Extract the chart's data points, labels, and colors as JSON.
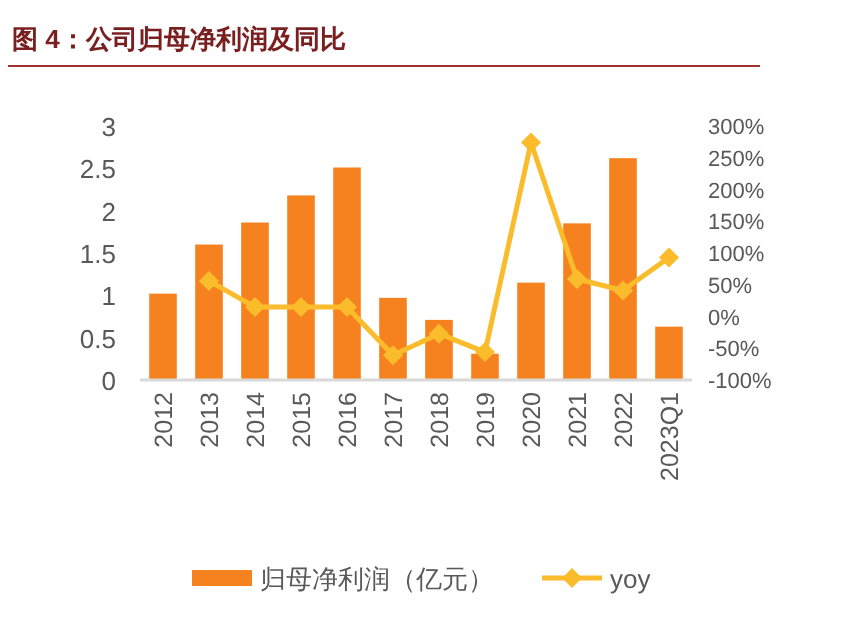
{
  "chart_data": {
    "type": "bar",
    "title": "图 4：公司归母净利润及同比",
    "categories": [
      "2012",
      "2013",
      "2014",
      "2015",
      "2016",
      "2017",
      "2018",
      "2019",
      "2020",
      "2021",
      "2022",
      "2023Q1"
    ],
    "series": [
      {
        "name": "归母净利润（亿元）",
        "color": "#f5821f",
        "values": [
          1.02,
          1.6,
          1.86,
          2.18,
          2.51,
          0.97,
          0.71,
          0.31,
          1.15,
          1.85,
          2.62,
          0.63
        ]
      },
      {
        "name": "yoy",
        "type": "line",
        "axis": "y2",
        "color": "#fbbc2c",
        "marker": "diamond",
        "values": [
          null,
          56,
          15,
          15,
          15,
          -61,
          -27,
          -56,
          274,
          59,
          41,
          93
        ]
      }
    ],
    "ylim": [
      0,
      3
    ],
    "yticks": [
      0,
      0.5,
      1,
      1.5,
      2,
      2.5,
      3
    ],
    "y2lim": [
      -100,
      300
    ],
    "y2ticks": [
      {
        "value": -100,
        "label": "-100%"
      },
      {
        "value": -50,
        "label": "-50%"
      },
      {
        "value": 0,
        "label": "0%"
      },
      {
        "value": 50,
        "label": "50%"
      },
      {
        "value": 100,
        "label": "100%"
      },
      {
        "value": 150,
        "label": "150%"
      },
      {
        "value": 200,
        "label": "200%"
      },
      {
        "value": 250,
        "label": "250%"
      },
      {
        "value": 300,
        "label": "300%"
      }
    ],
    "grid": false,
    "legend": "bottom"
  }
}
